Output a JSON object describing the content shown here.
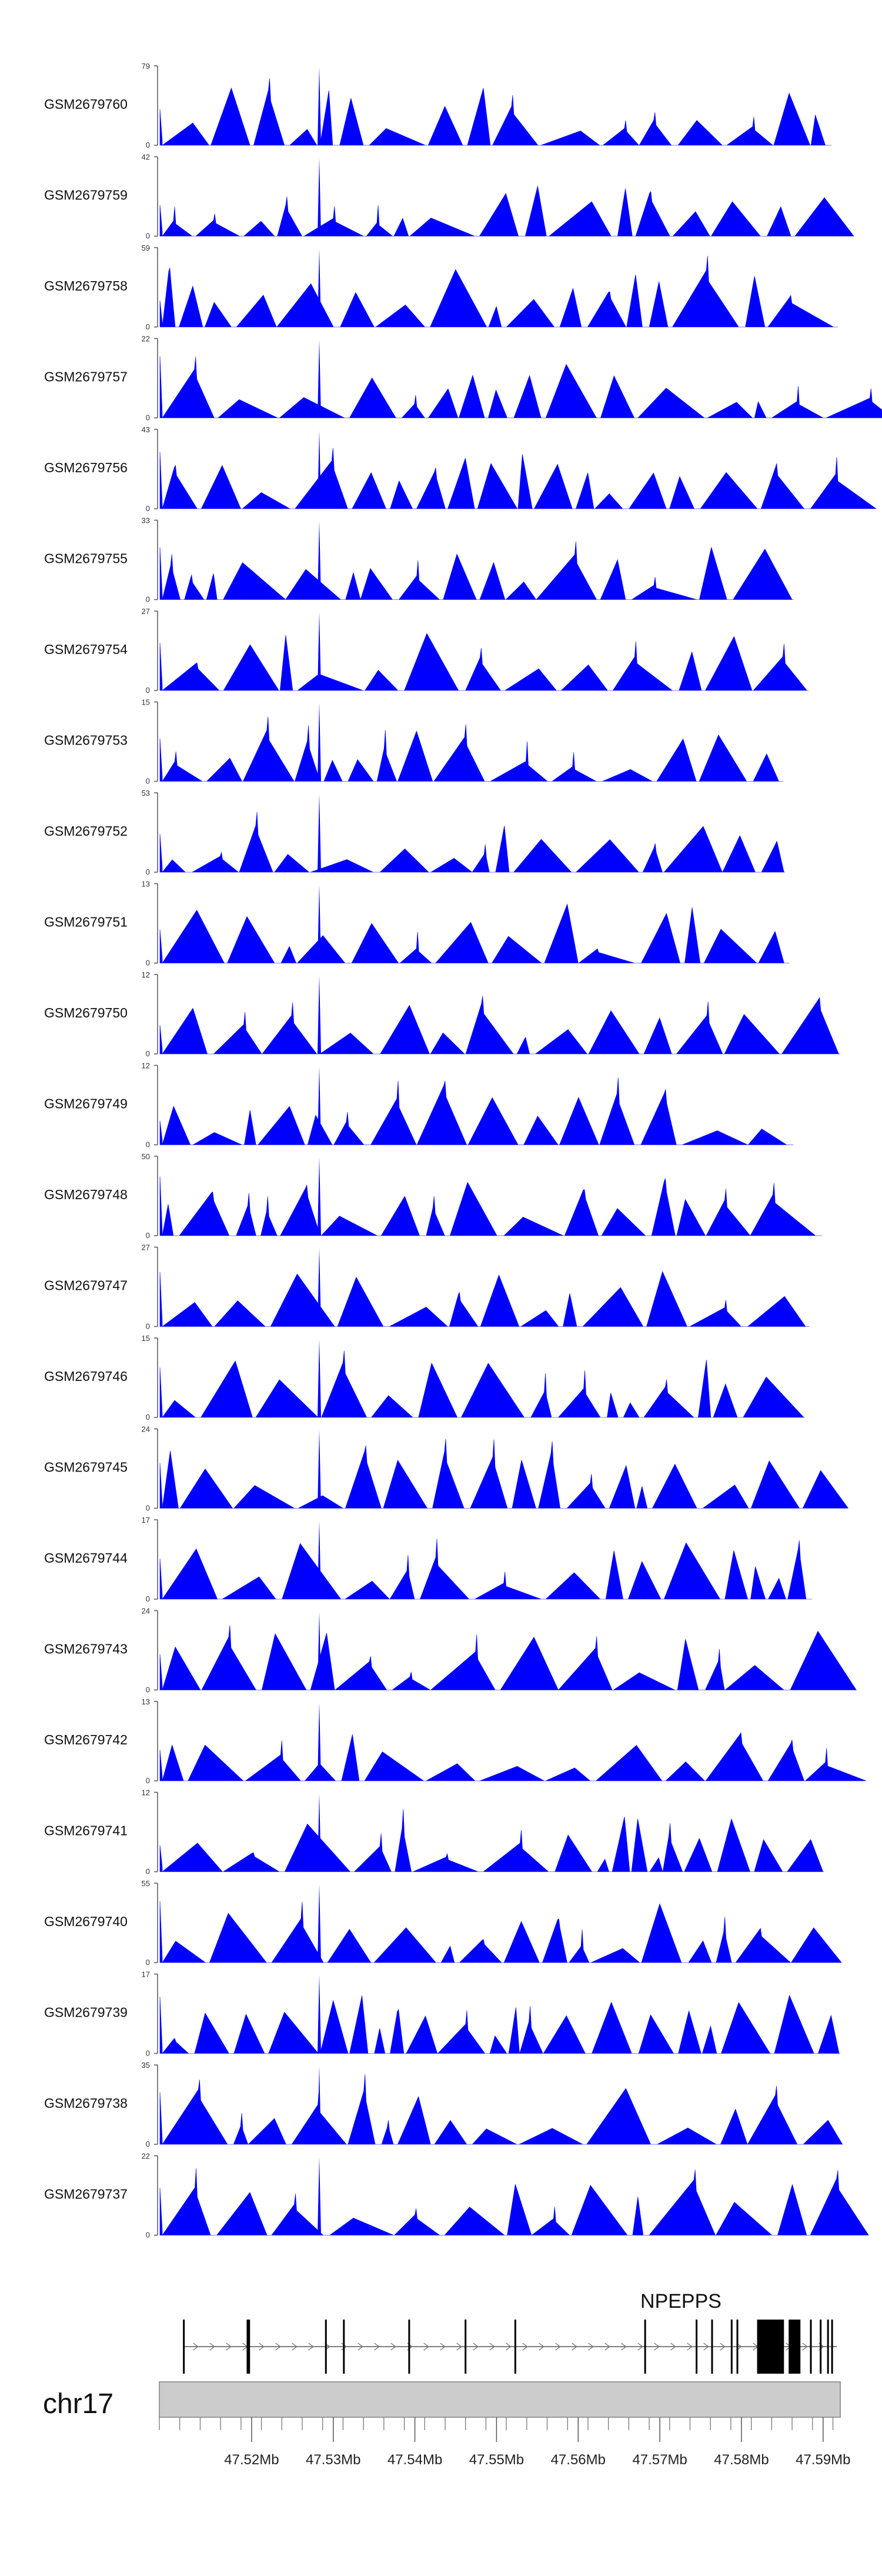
{
  "chart_data": {
    "type": "area",
    "description_note": "RNA-seq coverage tracks per sample over the NPEPPS locus",
    "color": "#0000ff",
    "tracks": [
      {
        "name": "GSM2679760",
        "max": "79",
        "min": "0"
      },
      {
        "name": "GSM2679759",
        "max": "42",
        "min": "0"
      },
      {
        "name": "GSM2679758",
        "max": "59",
        "min": "0"
      },
      {
        "name": "GSM2679757",
        "max": "22",
        "min": "0"
      },
      {
        "name": "GSM2679756",
        "max": "43",
        "min": "0"
      },
      {
        "name": "GSM2679755",
        "max": "33",
        "min": "0"
      },
      {
        "name": "GSM2679754",
        "max": "27",
        "min": "0"
      },
      {
        "name": "GSM2679753",
        "max": "15",
        "min": "0"
      },
      {
        "name": "GSM2679752",
        "max": "53",
        "min": "0"
      },
      {
        "name": "GSM2679751",
        "max": "13",
        "min": "0"
      },
      {
        "name": "GSM2679750",
        "max": "12",
        "min": "0"
      },
      {
        "name": "GSM2679749",
        "max": "12",
        "min": "0"
      },
      {
        "name": "GSM2679748",
        "max": "50",
        "min": "0"
      },
      {
        "name": "GSM2679747",
        "max": "27",
        "min": "0"
      },
      {
        "name": "GSM2679746",
        "max": "15",
        "min": "0"
      },
      {
        "name": "GSM2679745",
        "max": "24",
        "min": "0"
      },
      {
        "name": "GSM2679744",
        "max": "17",
        "min": "0"
      },
      {
        "name": "GSM2679743",
        "max": "24",
        "min": "0"
      },
      {
        "name": "GSM2679742",
        "max": "13",
        "min": "0"
      },
      {
        "name": "GSM2679741",
        "max": "12",
        "min": "0"
      },
      {
        "name": "GSM2679740",
        "max": "55",
        "min": "0"
      },
      {
        "name": "GSM2679739",
        "max": "17",
        "min": "0"
      },
      {
        "name": "GSM2679738",
        "max": "35",
        "min": "0"
      },
      {
        "name": "GSM2679737",
        "max": "22",
        "min": "0"
      }
    ],
    "gene": {
      "name": "NPEPPS",
      "start": 47.5117,
      "end": 47.5917
    },
    "chromosome": "chr17",
    "x_ticks": [
      "47.52Mb",
      "47.53Mb",
      "47.54Mb",
      "47.55Mb",
      "47.56Mb",
      "47.57Mb",
      "47.58Mb",
      "47.59Mb"
    ],
    "x_tick_values": [
      47.52,
      47.53,
      47.54,
      47.55,
      47.56,
      47.57,
      47.58,
      47.59
    ],
    "xlim": [
      47.5087,
      47.5921
    ],
    "exon_positions": [
      47.5117,
      47.5195,
      47.5197,
      47.5291,
      47.5313,
      47.5393,
      47.5462,
      47.5523,
      47.5682,
      47.5745,
      47.5764,
      47.5788,
      47.5795,
      47.5835,
      47.5851,
      47.5865,
      47.5885,
      47.5897,
      47.5906,
      47.5911
    ]
  }
}
